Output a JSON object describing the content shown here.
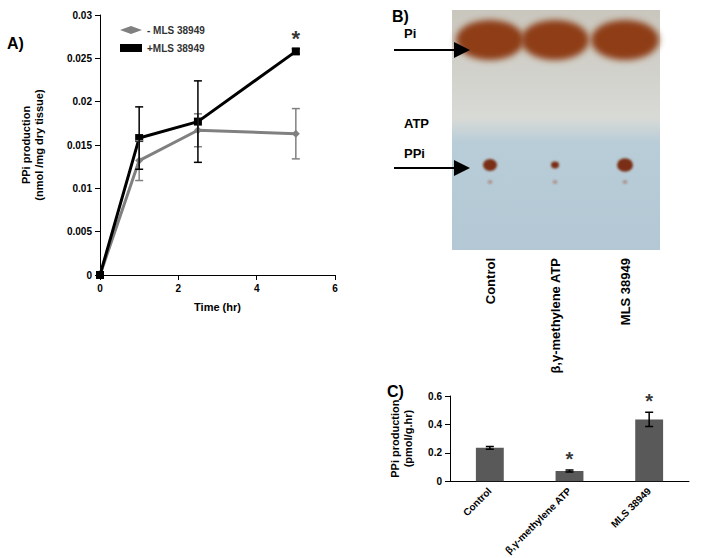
{
  "chart_data": [
    {
      "type": "line",
      "title": "A)",
      "x": [
        0,
        1,
        2.5,
        5
      ],
      "series": [
        {
          "name": "- MLS 38949",
          "color": "#808080",
          "marker": "diamond",
          "values": [
            0,
            0.0132,
            0.0167,
            0.0163
          ],
          "errors": [
            0,
            0.0023,
            0.0019,
            0.0029
          ]
        },
        {
          "name": "+MLS 38949",
          "color": "#000000",
          "marker": "square",
          "values": [
            0,
            0.0158,
            0.0177,
            0.0258
          ],
          "errors": [
            0,
            0.0036,
            0.0047,
            0.0003
          ]
        }
      ],
      "xlabel": "Time (hr)",
      "ylabel": "PPi production\n(nmol /mg dry tissue)",
      "xlim": [
        0,
        6
      ],
      "xticks": [
        0,
        2,
        4,
        6
      ],
      "ylim": [
        0,
        0.03
      ],
      "yticks": [
        0,
        0.005,
        0.01,
        0.015,
        0.02,
        0.025,
        0.03
      ],
      "grid": false,
      "legend": "upper left",
      "annotations": [
        {
          "text": "*",
          "x": 5,
          "y": 0.0258
        }
      ]
    },
    {
      "type": "bar",
      "title": "C)",
      "categories": [
        "Control",
        "β,γ-methylene ATP",
        "MLS 38949"
      ],
      "values": [
        0.235,
        0.072,
        0.435
      ],
      "errors": [
        0.01,
        0.007,
        0.05
      ],
      "color": "#595959",
      "ylabel": "PPi production\n(pmol/g.hr)",
      "ylim": [
        0,
        0.6
      ],
      "yticks": [
        0,
        0.2,
        0.4,
        0.6
      ],
      "grid": false,
      "annotations": [
        {
          "text": "*",
          "category": "β,γ-methylene ATP"
        },
        {
          "text": "*",
          "category": "MLS 38949"
        }
      ]
    }
  ],
  "tlc_plate": {
    "title": "B)",
    "bands": [
      {
        "label": "Pi",
        "arrow": true
      },
      {
        "label": "ATP",
        "arrow": false
      },
      {
        "label": "PPi",
        "arrow": true
      }
    ],
    "lanes": [
      "Control",
      "β,γ-methylene ATP",
      "MLS 38949"
    ]
  }
}
